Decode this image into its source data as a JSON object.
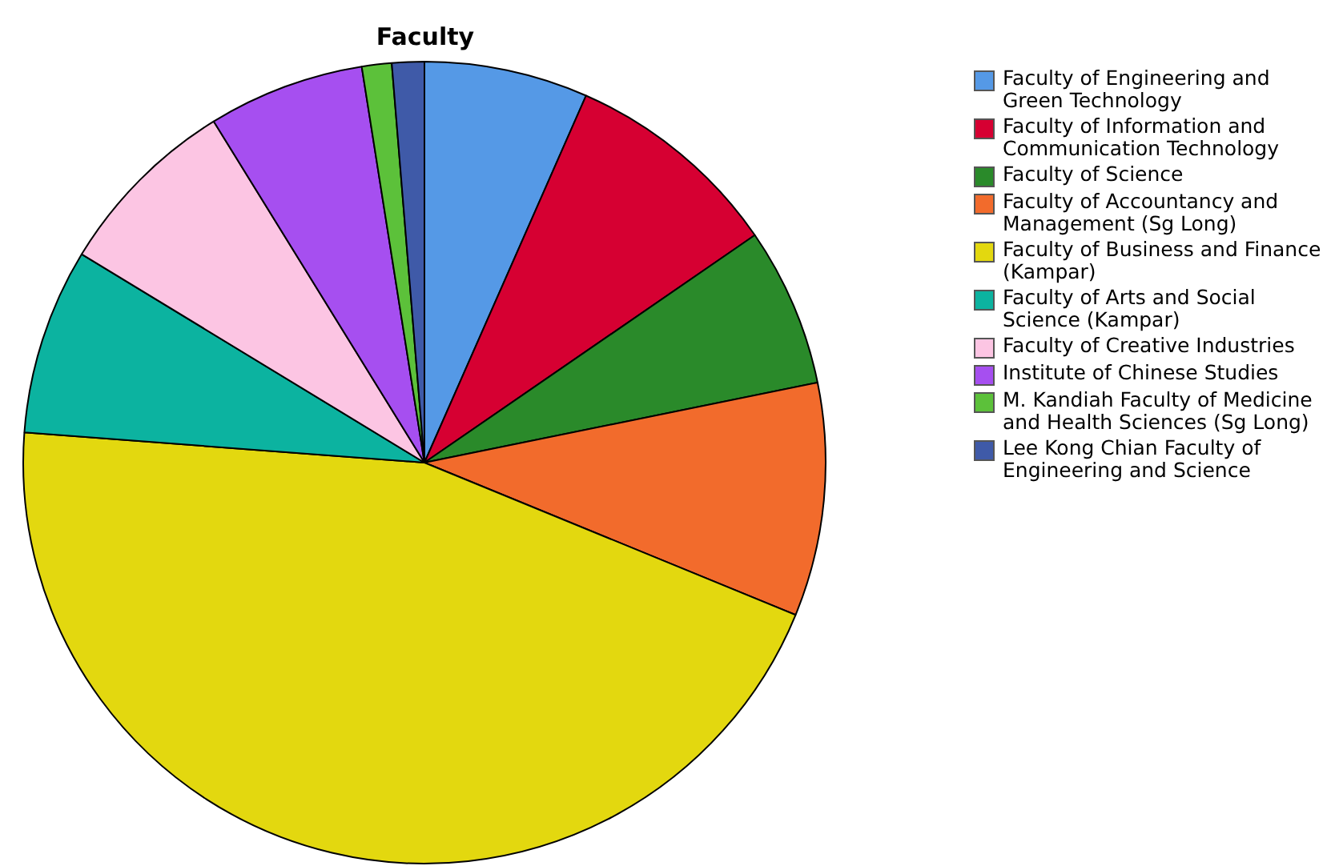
{
  "chart_data": {
    "type": "pie",
    "title": "Faculty",
    "legend": "top right",
    "categories": [
      "Faculty of Engineering and Green Technology",
      "Faculty of Information and Communication Technology",
      "Faculty of Science",
      "Faculty of Accountancy and Management (Sg Long)",
      "Faculty of Business and Finance (Kampar)",
      "Faculty of Arts and Social Science (Kampar)",
      "Faculty of Creative Industries",
      "Institute of Chinese Studies",
      "M. Kandiah Faculty of Medicine and Health Sciences (Sg Long)",
      "Lee Kong Chian Faculty of Engineering and Science"
    ],
    "values": [
      6.6,
      8.8,
      6.4,
      9.4,
      45.0,
      7.5,
      7.5,
      6.3,
      1.2,
      1.3
    ],
    "colors": [
      "#5599e6",
      "#d60032",
      "#2a8a2a",
      "#f26b2c",
      "#e3d80f",
      "#0cb3a0",
      "#fcc5e3",
      "#a64ff0",
      "#5cc13a",
      "#3f5aa8"
    ]
  }
}
